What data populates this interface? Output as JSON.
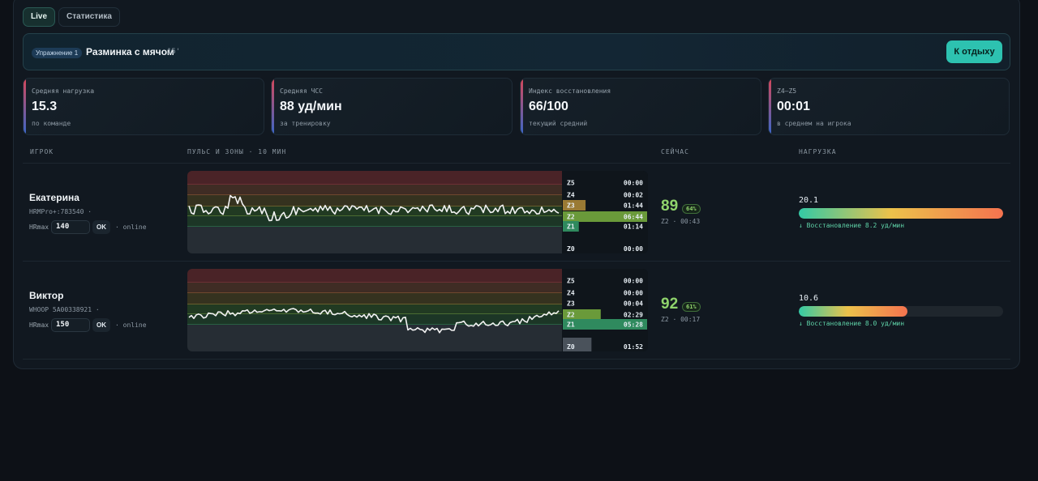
{
  "tabs": [
    {
      "label": "Live",
      "active": true
    },
    {
      "label": "Статистика",
      "active": false
    }
  ],
  "exercise": {
    "badge": "Упражнение 1",
    "title": "Разминка с мячом",
    "duration": "15'",
    "rest_button": "К отдыху"
  },
  "stats": [
    {
      "label": "Средняя нагрузка",
      "value": "15.3",
      "sub": "по команде"
    },
    {
      "label": "Средняя ЧСС",
      "value": "88 уд/мин",
      "sub": "за тренировку"
    },
    {
      "label": "Индекс восстановления",
      "value": "66/100",
      "sub": "текущий средний"
    },
    {
      "label": "Z4–Z5",
      "value": "00:01",
      "sub": "в среднем на игрока"
    }
  ],
  "columns": {
    "player": "ИГРОК",
    "chart": "ПУЛЬС И ЗОНЫ · 10 МИН",
    "now": "СЕЙЧАС",
    "load": "НАГРУЗКА"
  },
  "players": [
    {
      "name": "Екатерина",
      "device": "HRMPro+:783540 ·",
      "hrmax_label": "HRmax",
      "hrmax": "140",
      "ok": "OK",
      "status": "· online",
      "zones": [
        {
          "zone": "Z5",
          "time": "00:00",
          "fraction": 0.0,
          "color": "#7a2a2e"
        },
        {
          "zone": "Z4",
          "time": "00:02",
          "fraction": 0.0,
          "color": "#8b5a2b"
        },
        {
          "zone": "Z3",
          "time": "01:44",
          "fraction": 0.27,
          "color": "#9a7a34"
        },
        {
          "zone": "Z2",
          "time": "06:44",
          "fraction": 1.0,
          "color": "#6a9a3a"
        },
        {
          "zone": "Z1",
          "time": "01:14",
          "fraction": 0.19,
          "color": "#2f8a5e"
        },
        {
          "zone": "Z0",
          "time": "00:00",
          "fraction": 0.0,
          "color": "#4a525b"
        }
      ],
      "now_hr": "89",
      "now_pct": "64%",
      "now_sub": "Z2 · 00:43",
      "load": "20.1",
      "load_fraction": 1.0,
      "recovery": "↓ Восстановление 8.2 уд/мин"
    },
    {
      "name": "Виктор",
      "device": "WHOOP 5A00338921 ·",
      "hrmax_label": "HRmax",
      "hrmax": "150",
      "ok": "OK",
      "status": "· online",
      "zones": [
        {
          "zone": "Z5",
          "time": "00:00",
          "fraction": 0.0,
          "color": "#7a2a2e"
        },
        {
          "zone": "Z4",
          "time": "00:00",
          "fraction": 0.0,
          "color": "#8b5a2b"
        },
        {
          "zone": "Z3",
          "time": "00:04",
          "fraction": 0.0,
          "color": "#9a7a34"
        },
        {
          "zone": "Z2",
          "time": "02:29",
          "fraction": 0.45,
          "color": "#6a9a3a"
        },
        {
          "zone": "Z1",
          "time": "05:28",
          "fraction": 1.0,
          "color": "#2f8a5e"
        },
        {
          "zone": "Z0",
          "time": "01:52",
          "fraction": 0.34,
          "color": "#4a525b"
        }
      ],
      "now_hr": "92",
      "now_pct": "61%",
      "now_sub": "Z2 · 00:17",
      "load": "10.6",
      "load_fraction": 0.53,
      "recovery": "↓ Восстановление 8.0 уд/мин"
    }
  ]
}
